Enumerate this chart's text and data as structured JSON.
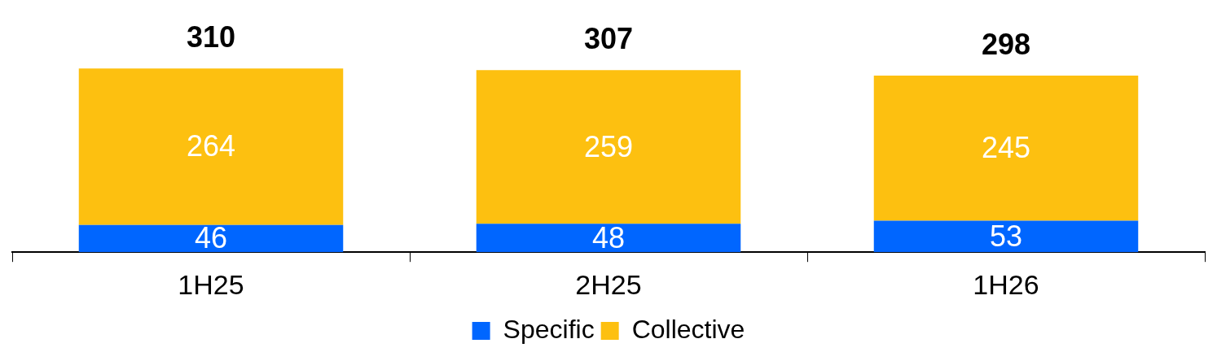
{
  "chart_data": {
    "type": "bar",
    "stacked": true,
    "categories": [
      "1H25",
      "2H25",
      "1H26"
    ],
    "series": [
      {
        "name": "Specific",
        "color": "#0066ff",
        "values": [
          46,
          48,
          53
        ]
      },
      {
        "name": "Collective",
        "color": "#fdc010",
        "values": [
          264,
          259,
          245
        ]
      }
    ],
    "data_labels": true,
    "totals": [
      "310",
      "307",
      "298"
    ],
    "legend": "bottom"
  }
}
